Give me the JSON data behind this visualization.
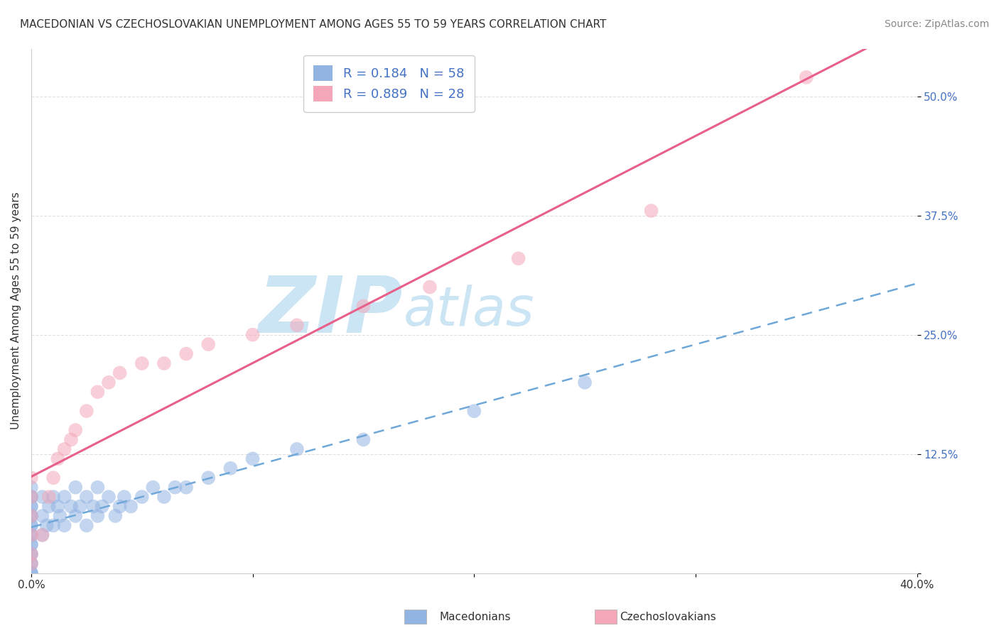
{
  "title": "MACEDONIAN VS CZECHOSLOVAKIAN UNEMPLOYMENT AMONG AGES 55 TO 59 YEARS CORRELATION CHART",
  "source": "Source: ZipAtlas.com",
  "ylabel": "Unemployment Among Ages 55 to 59 years",
  "xlabel_macedonians": "Macedonians",
  "xlabel_czechoslovakians": "Czechoslovakians",
  "macedonian_R": 0.184,
  "macedonian_N": 58,
  "czechoslovakian_R": 0.889,
  "czechoslovakian_N": 28,
  "macedonian_color": "#92b4e3",
  "czechoslovakian_color": "#f4a7b9",
  "macedonian_line_color": "#6fa8d8",
  "czechoslovakian_line_color": "#e8608a",
  "xlim": [
    0.0,
    0.4
  ],
  "ylim": [
    0.0,
    0.55
  ],
  "xticks": [
    0.0,
    0.1,
    0.2,
    0.3,
    0.4
  ],
  "yticks": [
    0.0,
    0.125,
    0.25,
    0.375,
    0.5
  ],
  "xtick_labels": [
    "0.0%",
    "",
    "",
    "",
    "40.0%"
  ],
  "ytick_labels": [
    "",
    "12.5%",
    "25.0%",
    "37.5%",
    "50.0%"
  ],
  "macedonian_x": [
    0.0,
    0.0,
    0.0,
    0.0,
    0.0,
    0.0,
    0.0,
    0.0,
    0.0,
    0.0,
    0.0,
    0.0,
    0.0,
    0.0,
    0.0,
    0.0,
    0.0,
    0.0,
    0.0,
    0.0,
    0.005,
    0.005,
    0.005,
    0.007,
    0.008,
    0.01,
    0.01,
    0.012,
    0.013,
    0.015,
    0.015,
    0.018,
    0.02,
    0.02,
    0.022,
    0.025,
    0.025,
    0.028,
    0.03,
    0.03,
    0.032,
    0.035,
    0.038,
    0.04,
    0.042,
    0.045,
    0.05,
    0.055,
    0.06,
    0.065,
    0.07,
    0.08,
    0.09,
    0.1,
    0.12,
    0.15,
    0.2,
    0.25
  ],
  "macedonian_y": [
    0.0,
    0.0,
    0.0,
    0.01,
    0.01,
    0.02,
    0.02,
    0.03,
    0.03,
    0.04,
    0.04,
    0.05,
    0.05,
    0.06,
    0.06,
    0.07,
    0.07,
    0.08,
    0.08,
    0.09,
    0.04,
    0.06,
    0.08,
    0.05,
    0.07,
    0.05,
    0.08,
    0.07,
    0.06,
    0.05,
    0.08,
    0.07,
    0.06,
    0.09,
    0.07,
    0.05,
    0.08,
    0.07,
    0.06,
    0.09,
    0.07,
    0.08,
    0.06,
    0.07,
    0.08,
    0.07,
    0.08,
    0.09,
    0.08,
    0.09,
    0.09,
    0.1,
    0.11,
    0.12,
    0.13,
    0.14,
    0.17,
    0.2
  ],
  "czechoslovakian_x": [
    0.0,
    0.0,
    0.0,
    0.0,
    0.0,
    0.0,
    0.005,
    0.008,
    0.01,
    0.012,
    0.015,
    0.018,
    0.02,
    0.025,
    0.03,
    0.035,
    0.04,
    0.05,
    0.06,
    0.07,
    0.08,
    0.1,
    0.12,
    0.15,
    0.18,
    0.22,
    0.28,
    0.35
  ],
  "czechoslovakian_y": [
    0.01,
    0.02,
    0.04,
    0.06,
    0.08,
    0.1,
    0.04,
    0.08,
    0.1,
    0.12,
    0.13,
    0.14,
    0.15,
    0.17,
    0.19,
    0.2,
    0.21,
    0.22,
    0.22,
    0.23,
    0.24,
    0.25,
    0.26,
    0.28,
    0.3,
    0.33,
    0.38,
    0.52
  ],
  "watermark_zip": "ZIP",
  "watermark_atlas": "atlas",
  "watermark_color": "#cce5f5",
  "background_color": "#ffffff",
  "grid_color": "#e0e0e0",
  "title_fontsize": 11,
  "axis_label_fontsize": 11,
  "tick_fontsize": 11,
  "legend_fontsize": 13,
  "source_fontsize": 10,
  "right_tick_color": "#4472c4"
}
